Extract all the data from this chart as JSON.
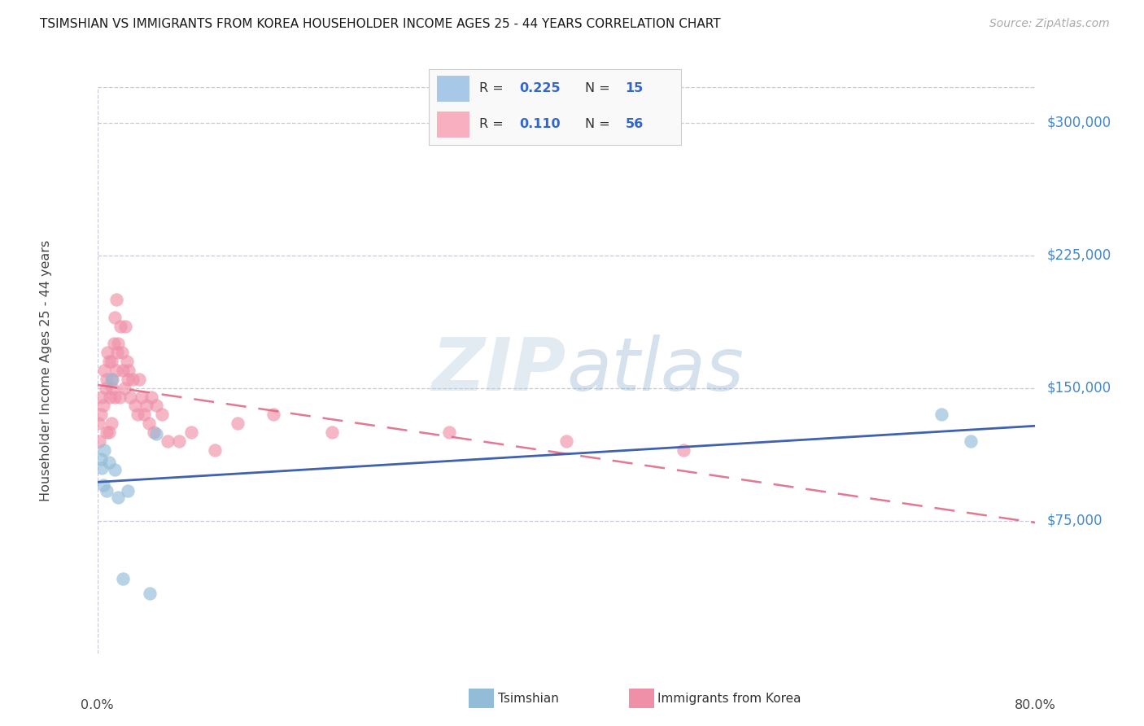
{
  "title": "TSIMSHIAN VS IMMIGRANTS FROM KOREA HOUSEHOLDER INCOME AGES 25 - 44 YEARS CORRELATION CHART",
  "source": "Source: ZipAtlas.com",
  "ylabel": "Householder Income Ages 25 - 44 years",
  "ytick_labels": [
    "$75,000",
    "$150,000",
    "$225,000",
    "$300,000"
  ],
  "ytick_values": [
    75000,
    150000,
    225000,
    300000
  ],
  "ymin": 0,
  "ymax": 320000,
  "xmin": 0.0,
  "xmax": 0.8,
  "series1_label": "Tsimshian",
  "series2_label": "Immigrants from Korea",
  "series1_dot_color": "#92bcd8",
  "series2_dot_color": "#f090a8",
  "series1_line_color": "#4060b0",
  "series2_line_color": "#e06080",
  "legend1_box_color": "#a8c8e8",
  "legend2_box_color": "#f8b0c0",
  "background_color": "#ffffff",
  "grid_color": "#c8c8d8",
  "watermark": "ZIPatlas",
  "watermark_color": "#c8d8ec",
  "title_color": "#1a1a1a",
  "source_color": "#aaaaaa",
  "axis_label_color": "#444444",
  "ytick_color": "#4488cc",
  "r1": "0.225",
  "n1": "15",
  "r2": "0.110",
  "n2": "56",
  "tsimshian_x": [
    0.003,
    0.004,
    0.005,
    0.006,
    0.008,
    0.01,
    0.012,
    0.015,
    0.018,
    0.022,
    0.026,
    0.045,
    0.05,
    0.72,
    0.745
  ],
  "tsimshian_y": [
    110000,
    105000,
    95000,
    115000,
    92000,
    108000,
    155000,
    104000,
    88000,
    42000,
    92000,
    34000,
    124000,
    135000,
    120000
  ],
  "korea_x": [
    0.001,
    0.002,
    0.003,
    0.004,
    0.005,
    0.006,
    0.007,
    0.008,
    0.008,
    0.009,
    0.01,
    0.01,
    0.011,
    0.012,
    0.012,
    0.013,
    0.013,
    0.014,
    0.015,
    0.015,
    0.016,
    0.016,
    0.017,
    0.018,
    0.019,
    0.02,
    0.021,
    0.022,
    0.023,
    0.024,
    0.025,
    0.026,
    0.027,
    0.028,
    0.03,
    0.032,
    0.034,
    0.036,
    0.038,
    0.04,
    0.042,
    0.044,
    0.046,
    0.048,
    0.05,
    0.055,
    0.06,
    0.07,
    0.08,
    0.1,
    0.12,
    0.15,
    0.2,
    0.3,
    0.4,
    0.5
  ],
  "korea_y": [
    130000,
    120000,
    135000,
    145000,
    140000,
    160000,
    150000,
    155000,
    125000,
    170000,
    165000,
    125000,
    145000,
    165000,
    130000,
    155000,
    150000,
    175000,
    190000,
    145000,
    200000,
    160000,
    170000,
    175000,
    145000,
    185000,
    170000,
    160000,
    150000,
    185000,
    165000,
    155000,
    160000,
    145000,
    155000,
    140000,
    135000,
    155000,
    145000,
    135000,
    140000,
    130000,
    145000,
    125000,
    140000,
    135000,
    120000,
    120000,
    125000,
    115000,
    130000,
    135000,
    125000,
    125000,
    120000,
    115000
  ]
}
